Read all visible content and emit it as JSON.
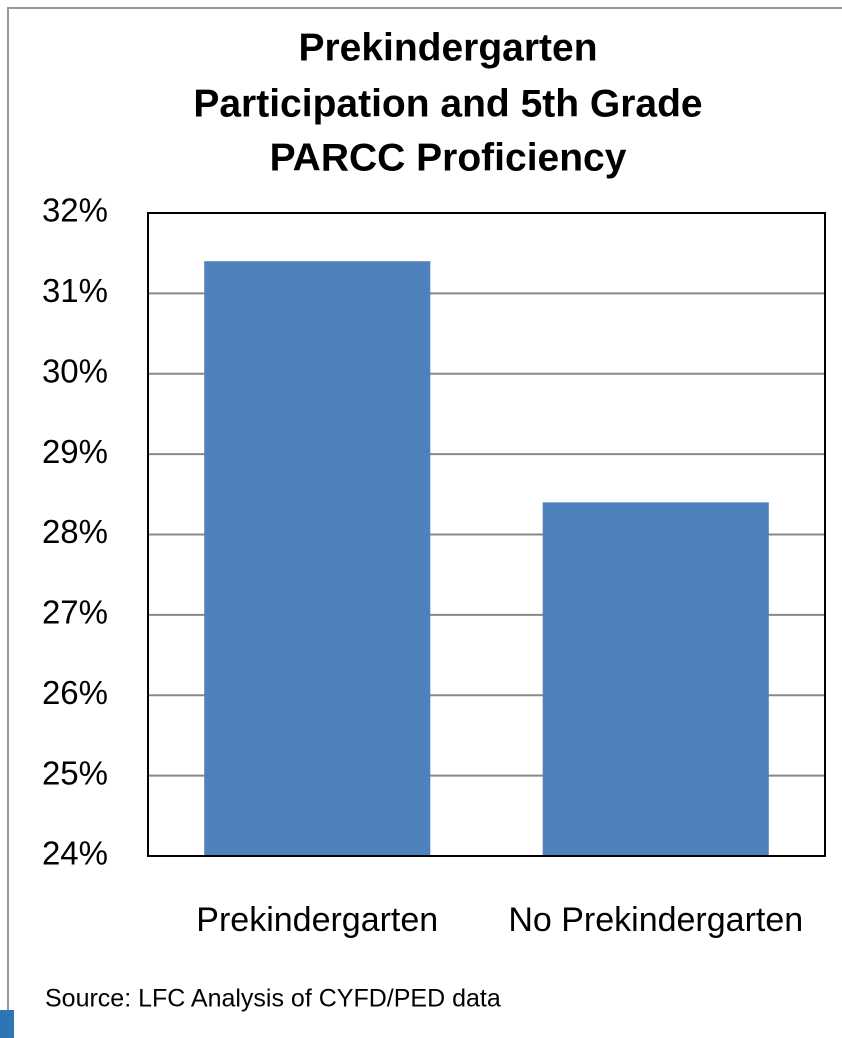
{
  "chart_data": {
    "type": "bar",
    "title": [
      "Prekindergarten",
      "Participation and 5th Grade",
      "PARCC Proficiency"
    ],
    "categories": [
      "Prekindergarten",
      "No Prekindergarten"
    ],
    "values": [
      31.4,
      28.4
    ],
    "color": "#4f81bd",
    "ylim": [
      24,
      32
    ],
    "yticks": [
      {
        "value": 24,
        "label": "24%"
      },
      {
        "value": 25,
        "label": "25%"
      },
      {
        "value": 26,
        "label": "26%"
      },
      {
        "value": 27,
        "label": "27%"
      },
      {
        "value": 28,
        "label": "28%"
      },
      {
        "value": 29,
        "label": "29%"
      },
      {
        "value": 30,
        "label": "30%"
      },
      {
        "value": 31,
        "label": "31%"
      },
      {
        "value": 32,
        "label": "32%"
      }
    ],
    "grid": true,
    "source": "Source: LFC Analysis of CYFD/PED data"
  }
}
